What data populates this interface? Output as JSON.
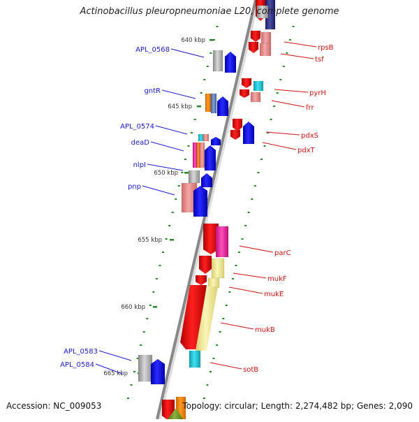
{
  "title": "Actinobacillus pleuropneumoniae L20, complete genome",
  "accession_label": "Accession: NC_009053",
  "summary_label": "Topology: circular; Length: 2,274,482 bp; Genes: 2,090",
  "kbp_ticks": [
    "640 kbp",
    "645 kbp",
    "650 kbp",
    "655 kbp",
    "660 kbp",
    "665 kbp"
  ],
  "left_labels": [
    "APL_0568",
    "gntR",
    "APL_0574",
    "deaD",
    "nlpI",
    "pnp",
    "APL_0583",
    "APL_0584"
  ],
  "right_labels": [
    "rpsB",
    "tsf",
    "pyrH",
    "frr",
    "pdxS",
    "pdxT",
    "parC",
    "mukF",
    "mukE",
    "mukB",
    "sotB"
  ],
  "colors": {
    "left_label": "#1a1acc",
    "right_label": "#cc1111",
    "backbone": "#888888",
    "tick": "#228822",
    "forward_gene": "#0000ee",
    "reverse_gene": "#ee0000"
  }
}
